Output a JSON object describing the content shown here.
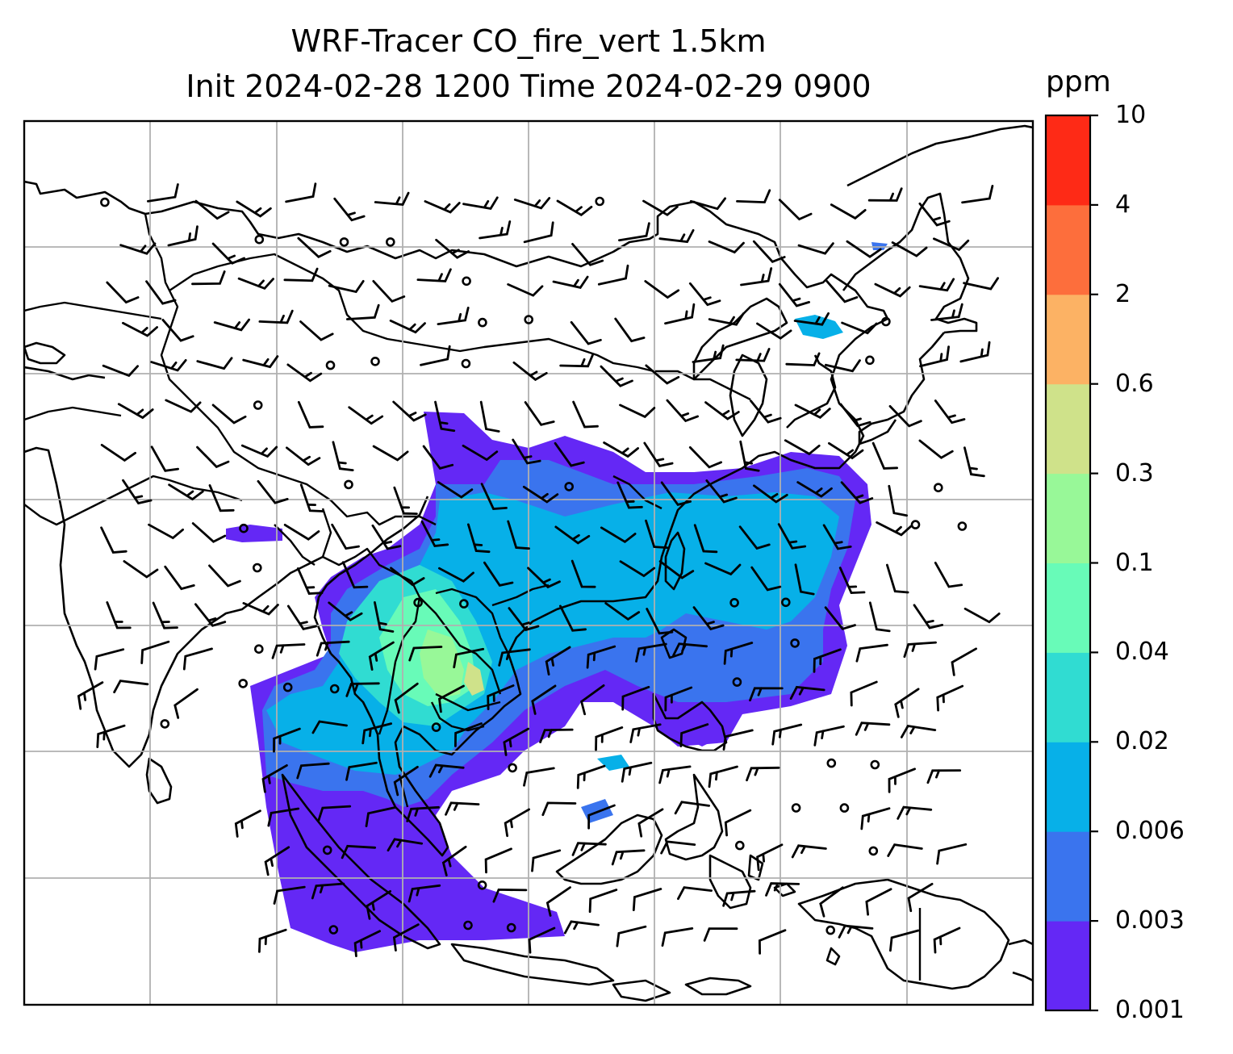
{
  "title": {
    "line1": "WRF-Tracer CO_fire_vert 1.5km",
    "line2": "Init 2024-02-28 1200 Time 2024-02-29 0900"
  },
  "colorbar": {
    "unit": "ppm",
    "levels": [
      "0.001",
      "0.003",
      "0.006",
      "0.02",
      "0.04",
      "0.1",
      "0.3",
      "0.6",
      "2",
      "4",
      "10"
    ],
    "colors": [
      "#6428f5",
      "#3a74ee",
      "#07b0e8",
      "#30dcd2",
      "#68fbb8",
      "#98f898",
      "#cfe28a",
      "#fcb264",
      "#fd6e3c",
      "#fe2a16"
    ]
  },
  "map": {
    "features": [
      "coastlines",
      "country-borders",
      "lat-lon-gridlines",
      "wind-barbs",
      "calm-wind-circles",
      "tracer-shading"
    ]
  }
}
